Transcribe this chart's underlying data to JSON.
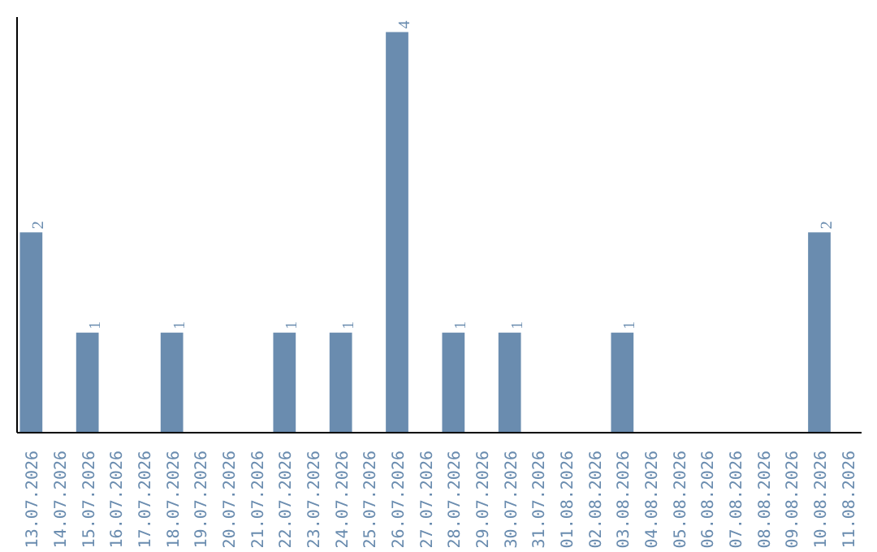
{
  "chart_data": {
    "type": "bar",
    "categories": [
      "13.07.2026",
      "14.07.2026",
      "15.07.2026",
      "16.07.2026",
      "17.07.2026",
      "18.07.2026",
      "19.07.2026",
      "20.07.2026",
      "21.07.2026",
      "22.07.2026",
      "23.07.2026",
      "24.07.2026",
      "25.07.2026",
      "26.07.2026",
      "27.07.2026",
      "28.07.2026",
      "29.07.2026",
      "30.07.2026",
      "31.07.2026",
      "01.08.2026",
      "02.08.2026",
      "03.08.2026",
      "04.08.2026",
      "05.08.2026",
      "06.08.2026",
      "07.08.2026",
      "08.08.2026",
      "09.08.2026",
      "10.08.2026",
      "11.08.2026"
    ],
    "values": [
      2,
      0,
      1,
      0,
      0,
      1,
      0,
      0,
      0,
      1,
      0,
      1,
      0,
      4,
      0,
      1,
      0,
      1,
      0,
      0,
      0,
      1,
      0,
      0,
      0,
      0,
      0,
      0,
      2,
      0
    ],
    "value_labels": [
      "2",
      null,
      "1",
      null,
      null,
      "1",
      null,
      null,
      null,
      "1",
      null,
      "1",
      null,
      "4",
      null,
      "1",
      null,
      "1",
      null,
      null,
      null,
      "1",
      null,
      null,
      null,
      null,
      null,
      null,
      "2",
      null
    ],
    "color": "#6a8caf",
    "ylim": [
      0,
      4.15
    ],
    "tick_labels": "x",
    "grid": false
  }
}
